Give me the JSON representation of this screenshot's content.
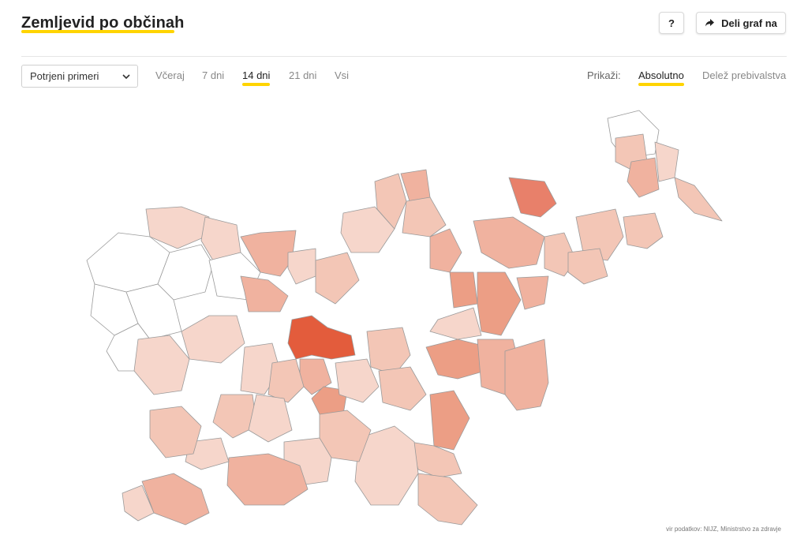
{
  "header": {
    "title": "Zemljevid po občinah",
    "help_label": "?",
    "share_label": "Deli graf na"
  },
  "icons": {
    "help": "question-mark",
    "share": "share-arrow-icon",
    "select": "chevron-down-icon"
  },
  "filters": {
    "metric": "Potrjeni primeri",
    "ranges": [
      "Včeraj",
      "7 dni",
      "14 dni",
      "21 dni",
      "Vsi"
    ],
    "active_range": "14 dni",
    "show_label": "Prikaži:",
    "modes": [
      "Absolutno",
      "Delež prebivalstva"
    ],
    "active_mode": "Absolutno"
  },
  "colors": {
    "accent": "#ffd400",
    "scale": [
      "#ffffff",
      "#f6d6cb",
      "#f3c6b6",
      "#f0b29f",
      "#ec9e85",
      "#e8806a",
      "#e35c3c"
    ]
  },
  "source": "vir podatkov: NIJZ, Ministrstvo za zdravje"
}
